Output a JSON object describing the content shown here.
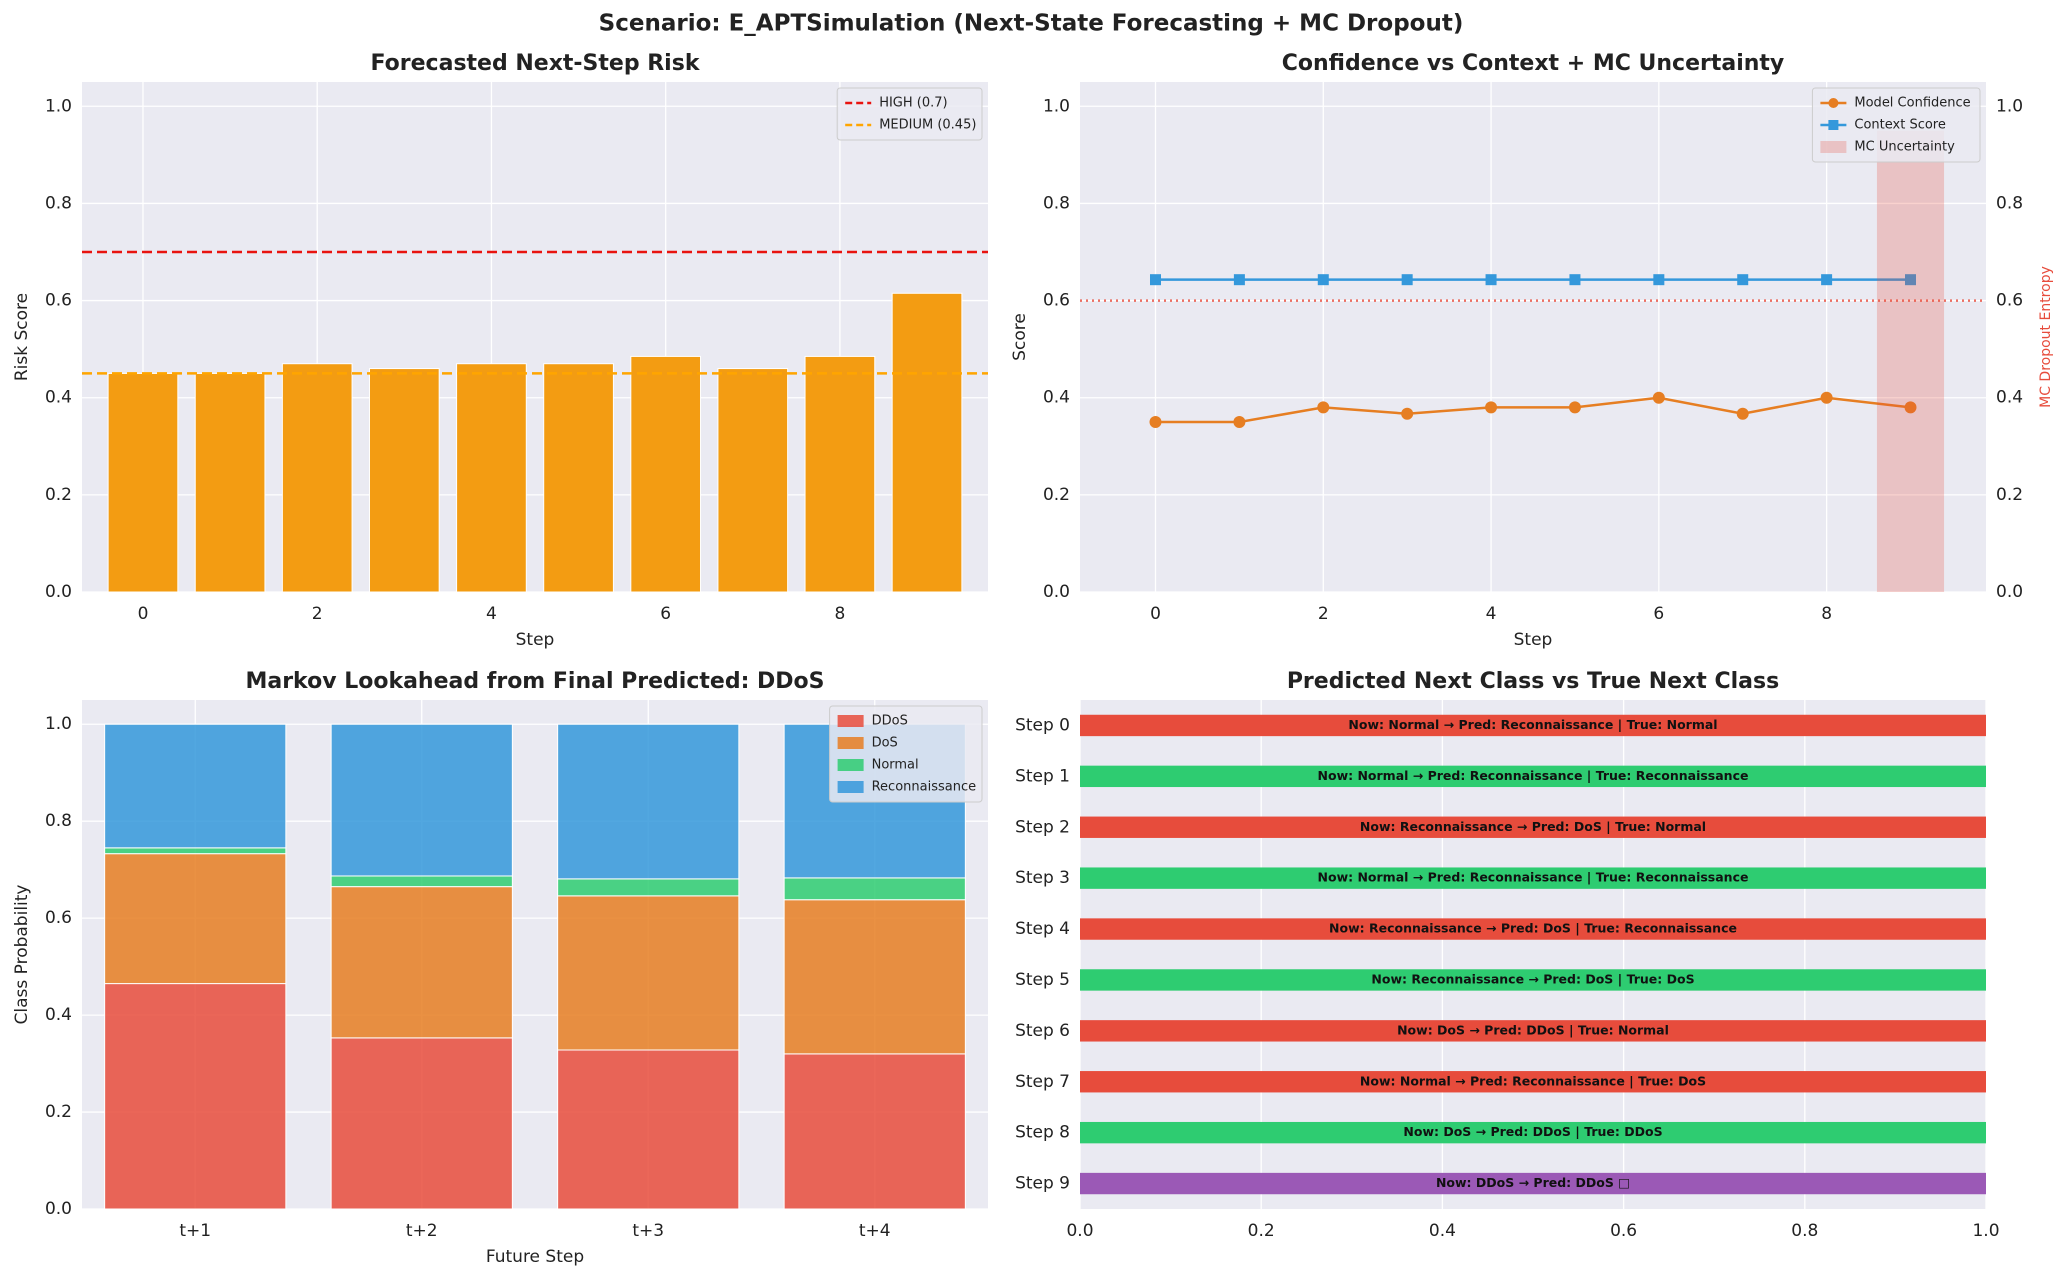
{
  "suptitle": "Scenario: E_APTSimulation  (Next-State Forecasting + MC Dropout)",
  "chart_data": [
    {
      "type": "bar",
      "title": "Forecasted Next-Step Risk",
      "xlabel": "Step",
      "ylabel": "Risk Score",
      "x": [
        0,
        1,
        2,
        3,
        4,
        5,
        6,
        7,
        8,
        9
      ],
      "values": [
        0.45,
        0.45,
        0.47,
        0.46,
        0.47,
        0.47,
        0.485,
        0.46,
        0.485,
        0.615
      ],
      "color": "#f39c12",
      "xlim": [
        -0.7,
        9.7
      ],
      "xticks": [
        0,
        2,
        4,
        6,
        8
      ],
      "ylim": [
        0,
        1.05
      ],
      "yticks": [
        {
          "value": 0,
          "label": "0.0"
        },
        0.2,
        0.4,
        0.6,
        0.8,
        {
          "value": 1,
          "label": "1.0"
        }
      ],
      "ref_lines": [
        {
          "label": "HIGH (0.7)",
          "value": 0.7,
          "color": "#e8130f"
        },
        {
          "label": "MEDIUM (0.45)",
          "value": 0.45,
          "color": "#ffa500"
        }
      ],
      "grid": true,
      "legend": "upper right"
    },
    {
      "type": "line",
      "title": "Confidence vs Context + MC Uncertainty",
      "xlabel": "Step",
      "ylabel": "Score",
      "y2label": "MC Dropout Entropy",
      "x": [
        0,
        1,
        2,
        3,
        4,
        5,
        6,
        7,
        8,
        9
      ],
      "series": [
        {
          "name": "Model Confidence",
          "color": "#e67e22",
          "marker": "circle",
          "values": [
            0.35,
            0.35,
            0.38,
            0.367,
            0.38,
            0.38,
            0.4,
            0.367,
            0.4,
            0.38
          ]
        },
        {
          "name": "Context Score",
          "color": "#3498db",
          "marker": "square",
          "values": [
            0.643,
            0.643,
            0.643,
            0.643,
            0.643,
            0.643,
            0.643,
            0.643,
            0.643,
            0.643
          ]
        },
        {
          "name": "MC Uncertainty",
          "color": "#e74c3c",
          "marker": "bar",
          "axis": "y2",
          "values": [
            null,
            null,
            null,
            null,
            null,
            null,
            null,
            null,
            null,
            0.95
          ]
        }
      ],
      "ref_lines": [
        {
          "value": 0.6,
          "color": "#e74c3c"
        }
      ],
      "xlim": [
        -0.9,
        9.9
      ],
      "xticks": [
        0,
        2,
        4,
        6,
        8
      ],
      "ylim": [
        0,
        1.05
      ],
      "yticks": [
        {
          "value": 0,
          "label": "0.0"
        },
        0.2,
        0.4,
        0.6,
        0.8,
        {
          "value": 1,
          "label": "1.0"
        }
      ],
      "y2lim": [
        0,
        1.05
      ],
      "y2ticks": [
        {
          "value": 0,
          "label": "0.0"
        },
        0.2,
        0.4,
        0.6,
        0.8,
        {
          "value": 1,
          "label": "1.0"
        }
      ],
      "grid": true,
      "legend": "upper right"
    },
    {
      "type": "stacked_bar",
      "title": "Markov Lookahead from Final Predicted: DDoS",
      "xlabel": "Future Step",
      "ylabel": "Class Probability",
      "categories": [
        "t+1",
        "t+2",
        "t+3",
        "t+4"
      ],
      "series": [
        {
          "name": "DDoS",
          "color": "#e74c3c",
          "values": [
            0.465,
            0.353,
            0.328,
            0.32
          ]
        },
        {
          "name": "DoS",
          "color": "#e67e22",
          "values": [
            0.268,
            0.312,
            0.318,
            0.318
          ]
        },
        {
          "name": "Normal",
          "color": "#2ecc71",
          "values": [
            0.012,
            0.022,
            0.035,
            0.045
          ]
        },
        {
          "name": "Reconnaissance",
          "color": "#3498db",
          "values": [
            0.255,
            0.313,
            0.319,
            0.317
          ]
        }
      ],
      "ylim": [
        0,
        1.05
      ],
      "yticks": [
        {
          "value": 0,
          "label": "0.0"
        },
        0.2,
        0.4,
        0.6,
        0.8,
        {
          "value": 1,
          "label": "1.0"
        }
      ],
      "grid": true,
      "legend": "upper right"
    },
    {
      "type": "barh",
      "title": "Predicted Next Class vs True Next Class",
      "categories": [
        "Step 0",
        "Step 1",
        "Step 2",
        "Step 3",
        "Step 4",
        "Step 5",
        "Step 6",
        "Step 7",
        "Step 8",
        "Step 9"
      ],
      "values": [
        1,
        1,
        1,
        1,
        1,
        1,
        1,
        1,
        1,
        1
      ],
      "colors": [
        "#e74c3c",
        "#2ecc71",
        "#e74c3c",
        "#2ecc71",
        "#e74c3c",
        "#2ecc71",
        "#e74c3c",
        "#e74c3c",
        "#2ecc71",
        "#9b59b6"
      ],
      "annotations": [
        "Now: Normal  →  Pred: Reconnaissance  | True: Normal",
        "Now: Normal  →  Pred: Reconnaissance  | True: Reconnaissance",
        "Now: Reconnaissance  →  Pred: DoS  | True: Normal",
        "Now: Normal  →  Pred: Reconnaissance  | True: Reconnaissance",
        "Now: Reconnaissance  →  Pred: DoS  | True: Reconnaissance",
        "Now: Reconnaissance  →  Pred: DoS  | True: DoS",
        "Now: DoS  →  Pred: DDoS  | True: Normal",
        "Now: Normal  →  Pred: Reconnaissance  | True: DoS",
        "Now: DoS  →  Pred: DDoS  | True: DDoS",
        "Now: DDoS  →  Pred: DDoS  □"
      ],
      "xlim": [
        0,
        1
      ],
      "xticks": [
        {
          "value": 0,
          "label": "0.0"
        },
        0.2,
        0.4,
        0.6,
        0.8,
        {
          "value": 1,
          "label": "1.0"
        }
      ],
      "grid": true
    }
  ]
}
